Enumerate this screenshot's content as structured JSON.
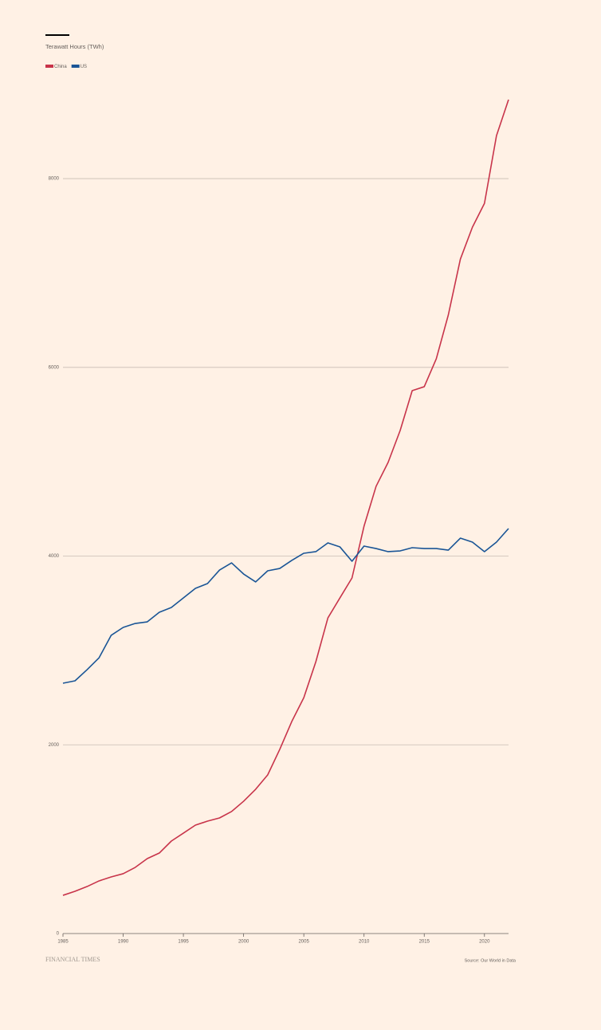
{
  "chart_data": {
    "type": "line",
    "subtitle": "Terawatt Hours (TWh)",
    "source": "Source: Our World in Data",
    "brand": "FINANCIAL TIMES",
    "x": [
      1985,
      1986,
      1987,
      1988,
      1989,
      1990,
      1991,
      1992,
      1993,
      1994,
      1995,
      1996,
      1997,
      1998,
      1999,
      2000,
      2001,
      2002,
      2003,
      2004,
      2005,
      2006,
      2007,
      2008,
      2009,
      2010,
      2011,
      2012,
      2013,
      2014,
      2015,
      2016,
      2017,
      2018,
      2019,
      2020,
      2021,
      2022
    ],
    "series": [
      {
        "name": "China",
        "color": "#c8344a",
        "values": [
          405,
          448,
          498,
          558,
          600,
          634,
          701,
          794,
          853,
          980,
          1064,
          1149,
          1191,
          1225,
          1293,
          1402,
          1529,
          1681,
          1951,
          2247,
          2500,
          2881,
          3345,
          3557,
          3768,
          4317,
          4739,
          4993,
          5331,
          5753,
          5795,
          6091,
          6556,
          7147,
          7485,
          7738,
          8456,
          8837
        ]
      },
      {
        "name": "US",
        "color": "#1a5596",
        "values": [
          2653,
          2678,
          2796,
          2923,
          3160,
          3244,
          3286,
          3303,
          3405,
          3455,
          3557,
          3658,
          3709,
          3852,
          3928,
          3810,
          3726,
          3844,
          3869,
          3954,
          4030,
          4047,
          4140,
          4097,
          3945,
          4106,
          4080,
          4047,
          4055,
          4089,
          4080,
          4080,
          4063,
          4190,
          4148,
          4047,
          4148,
          4292
        ]
      }
    ],
    "xlim": [
      1985,
      2022
    ],
    "xticks": [
      1985,
      1990,
      1995,
      2000,
      2005,
      2010,
      2015,
      2020
    ],
    "ylim": [
      0,
      9000
    ],
    "yticks": [
      0,
      2000,
      4000,
      6000,
      8000
    ],
    "grid": true
  }
}
